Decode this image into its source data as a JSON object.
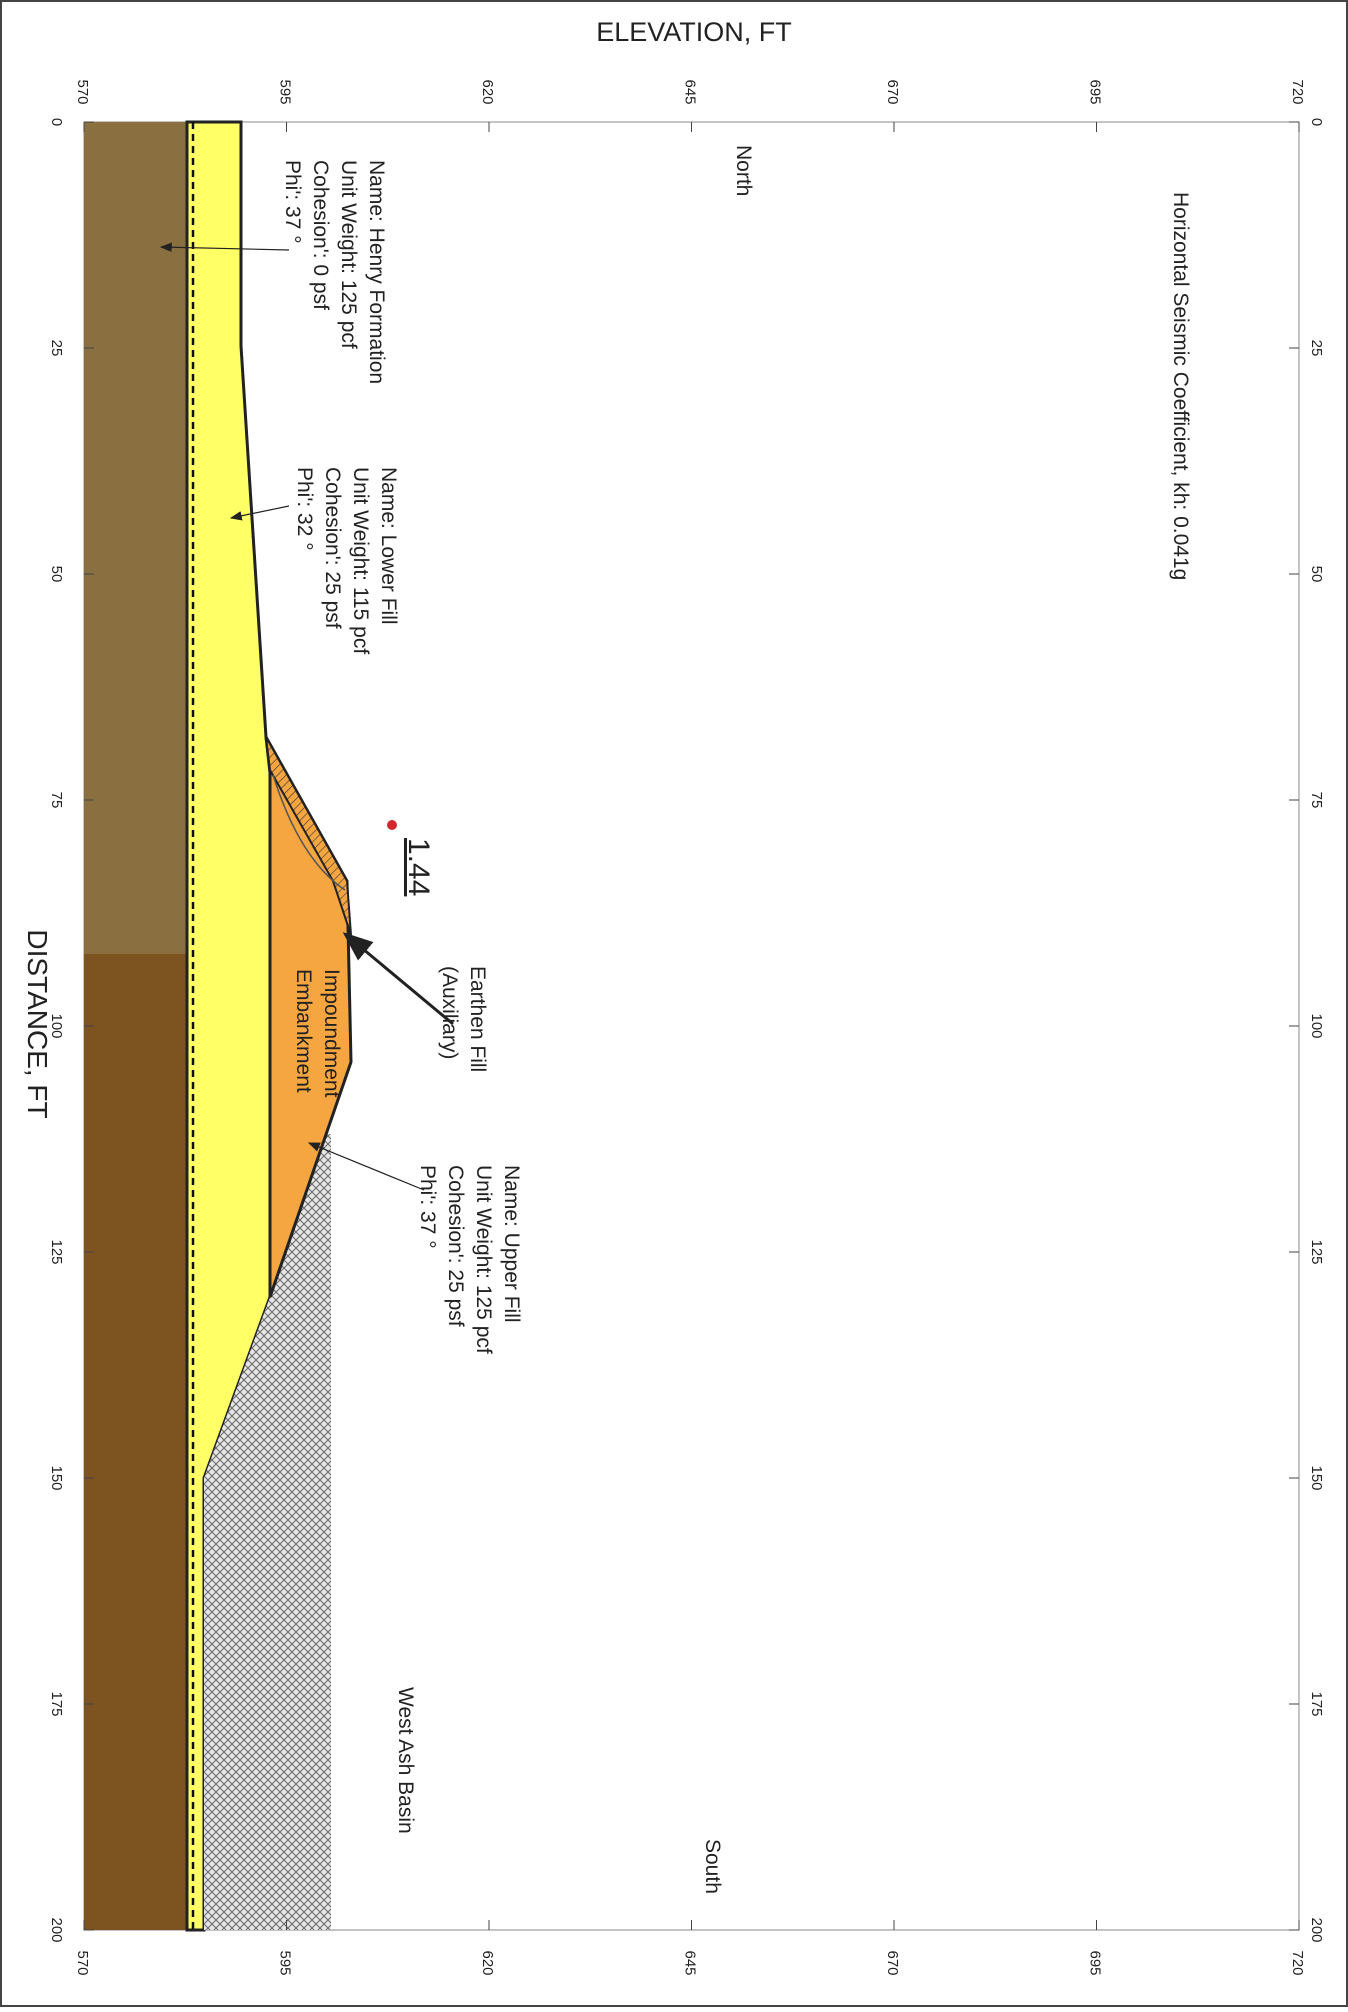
{
  "axes": {
    "elevation": {
      "title": "ELEVATION, FT",
      "ticks": [
        570,
        595,
        620,
        645,
        670,
        695,
        720
      ]
    },
    "distance": {
      "title": "DISTANCE, FT",
      "ticks": [
        0,
        25,
        50,
        75,
        100,
        125,
        150,
        175,
        200
      ]
    }
  },
  "notes": {
    "seismic": "Horizontal Seismic Coefficient, kh: 0.041g",
    "north": "North",
    "south": "South",
    "basin": "West Ash Basin"
  },
  "factor_of_safety": 1.44,
  "materials": [
    {
      "lines": [
        "Name: Henry Formation",
        "Unit Weight: 125 pcf",
        "Cohesion': 0 psf",
        "Phi': 37 °"
      ]
    },
    {
      "lines": [
        "Name: Lower Fill",
        "Unit Weight: 115 pcf",
        "Cohesion': 25 psf",
        "Phi': 32 °"
      ]
    },
    {
      "lines": [
        "Name: Upper Fill",
        "Unit Weight: 125 pcf",
        "Cohesion': 25 psf",
        "Phi': 37 °"
      ]
    }
  ],
  "labels": {
    "earthen": [
      "Earthen Fill",
      "(Auxiliary)"
    ],
    "embankment": [
      "Impoundment",
      "Embankment"
    ]
  }
}
